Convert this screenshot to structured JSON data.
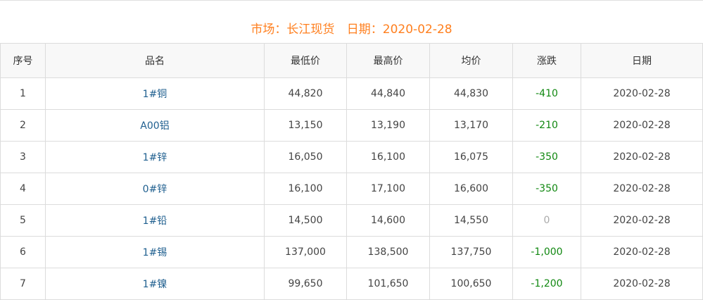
{
  "header": {
    "market_label": "市场：长江现货",
    "date_label": "日期：2020-02-28"
  },
  "colors": {
    "title": "#ff7f1e",
    "down": "#118811",
    "zero": "#aaaaaa",
    "name": "#1f5f8f"
  },
  "table": {
    "columns": [
      "序号",
      "品名",
      "最低价",
      "最高价",
      "均价",
      "涨跌",
      "日期"
    ],
    "rows": [
      [
        "1",
        "1#铜",
        "44,820",
        "44,840",
        "44,830",
        "-410",
        "2020-02-28"
      ],
      [
        "2",
        "A00铝",
        "13,150",
        "13,190",
        "13,170",
        "-210",
        "2020-02-28"
      ],
      [
        "3",
        "1#锌",
        "16,050",
        "16,100",
        "16,075",
        "-350",
        "2020-02-28"
      ],
      [
        "4",
        "0#锌",
        "16,100",
        "17,100",
        "16,600",
        "-350",
        "2020-02-28"
      ],
      [
        "5",
        "1#铅",
        "14,500",
        "14,600",
        "14,550",
        "0",
        "2020-02-28"
      ],
      [
        "6",
        "1#锡",
        "137,000",
        "138,500",
        "137,750",
        "-1,000",
        "2020-02-28"
      ],
      [
        "7",
        "1#镍",
        "99,650",
        "101,650",
        "100,650",
        "-1,200",
        "2020-02-28"
      ]
    ]
  }
}
